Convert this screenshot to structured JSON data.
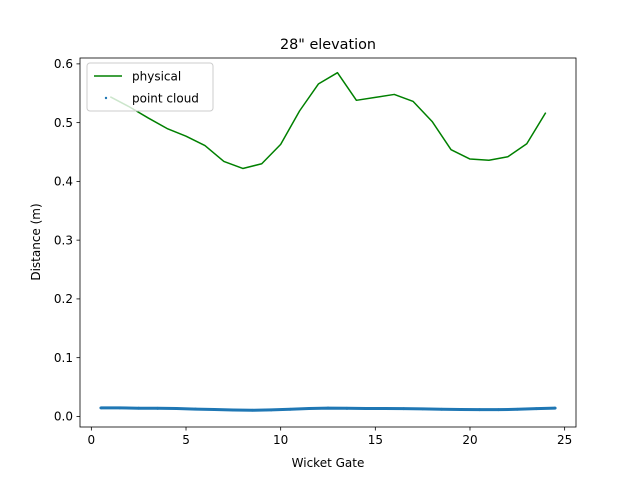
{
  "chart_data": {
    "type": "line",
    "title": "28\" elevation",
    "xlabel": "Wicket Gate",
    "ylabel": "Distance (m)",
    "xlim": [
      -0.6,
      25.6
    ],
    "ylim": [
      -0.018,
      0.61
    ],
    "xticks": [
      0,
      5,
      10,
      15,
      20,
      25
    ],
    "yticks": [
      0.0,
      0.1,
      0.2,
      0.3,
      0.4,
      0.5,
      0.6
    ],
    "ytick_labels": [
      "0.0",
      "0.1",
      "0.2",
      "0.3",
      "0.4",
      "0.5",
      "0.6"
    ],
    "legend": {
      "placement": "top-left",
      "entries": [
        "physical",
        "point cloud"
      ]
    },
    "grid": false,
    "series": [
      {
        "name": "physical",
        "style": "line",
        "color": "#008000",
        "x": [
          1,
          2,
          3,
          4,
          5,
          6,
          7,
          8,
          9,
          10,
          11,
          12,
          13,
          14,
          15,
          16,
          17,
          18,
          19,
          20,
          21,
          22,
          23,
          24
        ],
        "y": [
          0.544,
          0.527,
          0.508,
          0.49,
          0.477,
          0.461,
          0.434,
          0.422,
          0.43,
          0.463,
          0.52,
          0.566,
          0.585,
          0.538,
          0.543,
          0.548,
          0.536,
          0.502,
          0.454,
          0.438,
          0.436,
          0.442,
          0.464,
          0.517
        ]
      },
      {
        "name": "point cloud",
        "style": "scatter",
        "color": "#1f77b4",
        "x": [
          0.5,
          1.5,
          2.5,
          3.5,
          4.5,
          5.5,
          6.5,
          7.5,
          8.5,
          9.5,
          10.5,
          11.5,
          12.5,
          13.5,
          14.5,
          15.5,
          16.5,
          17.5,
          18.5,
          19.5,
          20.5,
          21.5,
          22.5,
          23.5,
          24.5
        ],
        "y": [
          0.0145,
          0.0145,
          0.014,
          0.0138,
          0.0135,
          0.0125,
          0.0118,
          0.011,
          0.0105,
          0.0112,
          0.0122,
          0.0135,
          0.0142,
          0.0138,
          0.0135,
          0.0135,
          0.0132,
          0.0128,
          0.0122,
          0.0118,
          0.0115,
          0.0115,
          0.0122,
          0.0132,
          0.0142
        ]
      }
    ]
  }
}
